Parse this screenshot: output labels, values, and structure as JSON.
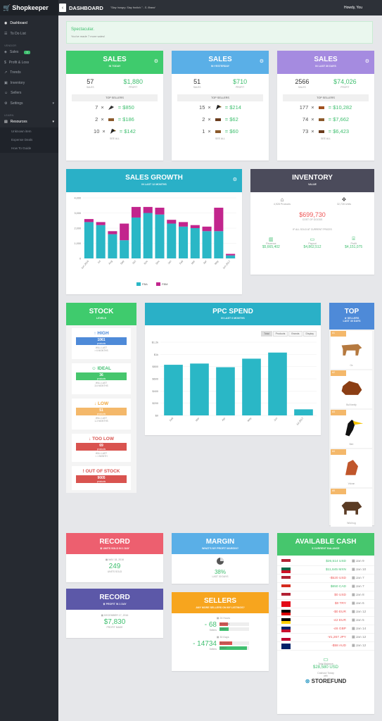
{
  "app": {
    "logo": "Shopkeeper",
    "page_title": "DASHBOARD",
    "quote": "\"Stay hungry. Stay foolish.\" - S. Brand",
    "user_greeting": "Howdy, You"
  },
  "sidebar": {
    "items": [
      {
        "label": "Dashboard"
      },
      {
        "label": "To Do List"
      }
    ],
    "section_vendor": "VENDOR",
    "vendor_items": [
      {
        "label": "Sales",
        "badge": "7"
      },
      {
        "label": "Profit & Loss"
      },
      {
        "label": "Trends"
      },
      {
        "label": "Inventory"
      },
      {
        "label": "Sellers"
      },
      {
        "label": "Settings"
      }
    ],
    "section_learn": "LEARN",
    "learn_items": [
      {
        "label": "Resources"
      }
    ],
    "resource_sub": [
      "Unknown item",
      "Expense Deals",
      "How To Guide"
    ]
  },
  "alert": {
    "title": "Spectacular.",
    "text": "You've made 7 more sales!"
  },
  "sales": [
    {
      "title": "SALES",
      "subtitle": "IN TODAY",
      "count": "57",
      "count_label": "SALES",
      "profit": "$1,880",
      "profit_label": "PROFIT",
      "top_label": "TOP SELLERS",
      "top": [
        {
          "qty": "7",
          "val": "$850"
        },
        {
          "qty": "2",
          "val": "$186"
        },
        {
          "qty": "10",
          "val": "$142"
        }
      ],
      "see_all": "SEE ALL"
    },
    {
      "title": "SALES",
      "subtitle": "IN YESTERDAY",
      "count": "51",
      "count_label": "SALES",
      "profit": "$710",
      "profit_label": "PROFIT",
      "top_label": "TOP SELLERS",
      "top": [
        {
          "qty": "15",
          "val": "$214"
        },
        {
          "qty": "2",
          "val": "$62"
        },
        {
          "qty": "1",
          "val": "$60"
        }
      ],
      "see_all": "SEE ALL"
    },
    {
      "title": "SALES",
      "subtitle": "IN LAST 30 DAYS",
      "count": "2566",
      "count_label": "SALES",
      "profit": "$74,026",
      "profit_label": "PROFIT",
      "top_label": "TOP SELLERS",
      "top": [
        {
          "qty": "177",
          "val": "$10,282"
        },
        {
          "qty": "74",
          "val": "$7,662"
        },
        {
          "qty": "73",
          "val": "$6,423"
        }
      ],
      "see_all": "SEE ALL"
    }
  ],
  "growth": {
    "title": "SALES GROWTH",
    "subtitle": "IN LAST 12 MONTHS"
  },
  "chart_data": [
    {
      "type": "bar",
      "title": "SALES GROWTH",
      "stacked": true,
      "categories": [
        "Jun 2016",
        "Jul",
        "Aug",
        "Sep",
        "Oct",
        "Nov",
        "Dec",
        "Jan",
        "Feb",
        "Mar",
        "Apr",
        "May",
        "Jun 2017"
      ],
      "series": [
        {
          "name": "FBA",
          "values": [
            2400,
            2200,
            1600,
            1200,
            2700,
            3000,
            2900,
            2300,
            2100,
            2000,
            1800,
            1800,
            200
          ]
        },
        {
          "name": "FBM",
          "values": [
            200,
            200,
            200,
            1100,
            700,
            400,
            450,
            250,
            300,
            200,
            300,
            1550,
            100
          ]
        }
      ],
      "y_ticks": [
        "4,000",
        "3,000",
        "2,000",
        "1,000",
        "0"
      ],
      "ylim": [
        0,
        4000
      ],
      "legend": "bottom"
    },
    {
      "type": "bar",
      "title": "PPC SPEND",
      "categories": [
        "Feb",
        "Mar",
        "Apr",
        "May",
        "Jun",
        "Jul 2017"
      ],
      "values": [
        0.83,
        0.85,
        0.79,
        0.93,
        1.03,
        0.1
      ],
      "y_ticks": [
        "$1.2k",
        "$1k",
        "$800",
        "$600",
        "$400",
        "$200",
        "$0"
      ],
      "ylim": [
        0,
        1200
      ]
    }
  ],
  "inventory": {
    "title": "INVENTORY",
    "subtitle": "VALUE",
    "products": "4,928 Products",
    "units": "32,728 Units",
    "total": "$699,730",
    "total_label": "COST OF GOODS",
    "note": "IF ALL SOLD AT CURRENT PRICES",
    "revenue_label": "Revenue",
    "revenue": "$5,665,402",
    "payout_label": "Payout",
    "payout": "$4,862,512",
    "profit_label": "Profit",
    "profit": "$4,151,075"
  },
  "stock": {
    "title": "STOCK",
    "subtitle": "LEVELS",
    "blocks": [
      {
        "title": "HIGH",
        "count": "1061",
        "unit": "products",
        "note1": "WILL LAST",
        "note2": "> 6 MONTHS"
      },
      {
        "title": "IDEAL",
        "count": "36",
        "unit": "products",
        "note1": "WILL LAST",
        "note2": "3-6 MONTHS"
      },
      {
        "title": "LOW",
        "count": "51",
        "unit": "products",
        "note1": "WILL LAST",
        "note2": "1-3 MONTHS"
      },
      {
        "title": "TOO LOW",
        "count": "69",
        "unit": "products",
        "note1": "WILL LAST",
        "note2": "< 1 MONTH"
      },
      {
        "title": "OUT OF STOCK",
        "count": "9005",
        "unit": "products",
        "note1": "",
        "note2": ""
      }
    ]
  },
  "ppc": {
    "title": "PPC SPEND",
    "subtitle": "IN LAST 6 MONTHS",
    "tabs": [
      "Total",
      "Products",
      "Brands",
      "Display"
    ]
  },
  "top": {
    "title": "TOP",
    "subtitle": "SELLERS",
    "subtitle2": "LAST 30 DAYS",
    "items": [
      {
        "rank": "#1",
        "name": "Ox"
      },
      {
        "rank": "#2",
        "name": "Bull family"
      },
      {
        "rank": "#3",
        "name": "Bird"
      },
      {
        "rank": "#4",
        "name": "Vulcan"
      },
      {
        "rank": "#5",
        "name": "Wild hog"
      }
    ]
  },
  "record1": {
    "title": "RECORD",
    "subtitle": "UNITS SOLD IN 1 DAY",
    "date": "MAY 18, 2016",
    "value": "249",
    "label": "UNITS SOLD"
  },
  "record2": {
    "title": "RECORD",
    "subtitle": "PROFIT IN 1 DAY",
    "date": "DECEMBER 17, 2016",
    "value": "$7,830",
    "label": "PROFIT MADE"
  },
  "margin": {
    "title": "MARGIN",
    "subtitle": "WHAT'S MY PROFIT MARGIN?",
    "value": "38%",
    "label": "LAST 30 DAYS"
  },
  "sellers": {
    "title": "SELLERS",
    "subtitle": "ANY MORE SELLERS ON MY LISTINGS?",
    "h24": "24 Hours",
    "v24": "- 68",
    "v24l": "Sellers",
    "d30": "30 Days",
    "v30": "- 14734",
    "v30l": "Sellers",
    "bar_a": "Removed",
    "bar_b": "Added"
  },
  "cash": {
    "title": "AVAILABLE CASH",
    "subtitle": "CURRENT BALANCE",
    "rows": [
      {
        "amt": "$26,514 USD",
        "date": "Jan 9",
        "neg": false
      },
      {
        "amt": "$11,645 MXN",
        "date": "Jan 10",
        "neg": false
      },
      {
        "amt": "-$520 USD",
        "date": "Jan 7",
        "neg": true
      },
      {
        "amt": "$650 CAD",
        "date": "Jan 7",
        "neg": false
      },
      {
        "amt": "$0 USD",
        "date": "Jan 8",
        "neg": true
      },
      {
        "amt": "$0 TRY",
        "date": "Jan 6",
        "neg": true
      },
      {
        "amt": "-$0 EUR",
        "date": "Jan 12",
        "neg": true
      },
      {
        "amt": "-£2 EUR",
        "date": "Jan 5",
        "neg": true
      },
      {
        "amt": "-£6 GBP",
        "date": "Jan 14",
        "neg": true
      },
      {
        "amt": "-¥1,267 JPY",
        "date": "Jan 12",
        "neg": true
      },
      {
        "amt": "-$58 AUD",
        "date": "Jan 12",
        "neg": true
      }
    ],
    "total_label": "Total Balance",
    "total": "$28,580 USD",
    "cashout": "Cashout Today",
    "with": "with",
    "brand": "STOREFUND"
  }
}
